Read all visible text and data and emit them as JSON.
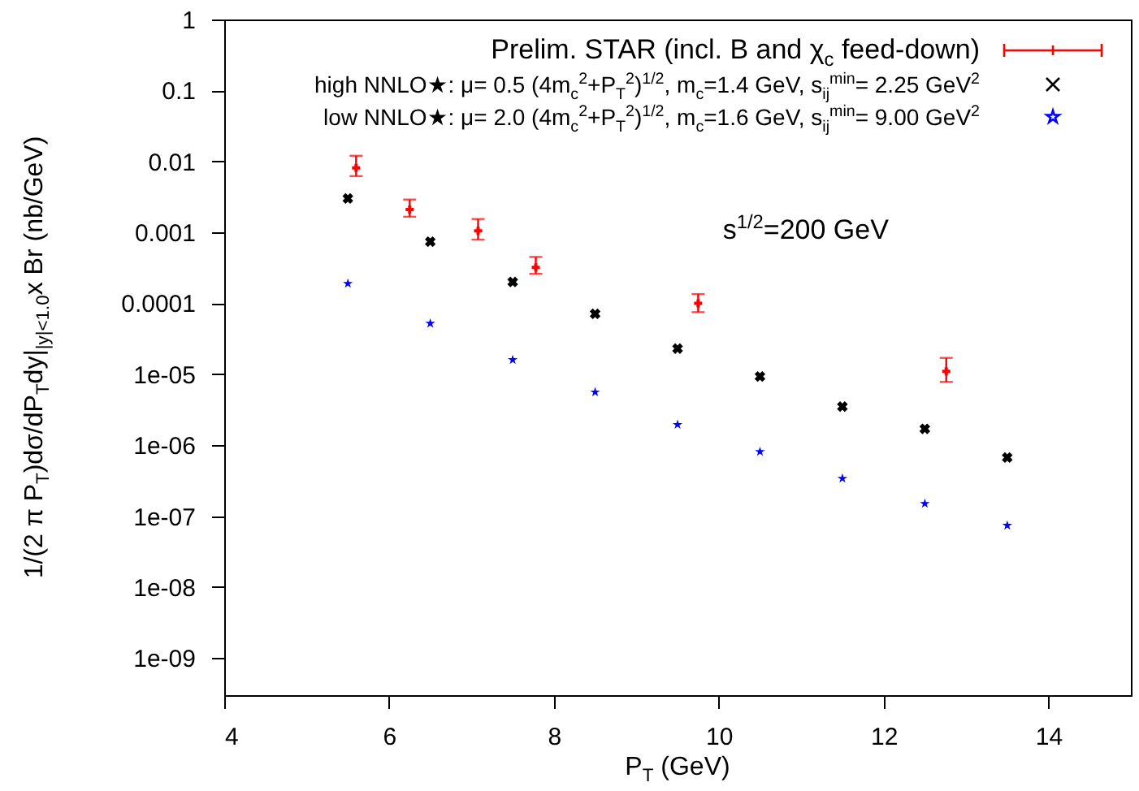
{
  "chart_data": {
    "type": "scatter",
    "xlabel": "P$_{T}$ (GeV)",
    "ylabel": "1/(2 π P$_{T}$)dσ/dP$_{T}$dy|$_{|y|<1.0}$x Br (nb/GeV)",
    "xlim": [
      4,
      15
    ],
    "xticks": [
      4,
      6,
      8,
      10,
      12,
      14
    ],
    "ylim": [
      3e-10,
      1
    ],
    "log": true,
    "yticks": [
      1,
      0.1,
      0.01,
      0.001,
      0.0001,
      {
        "value": 1e-05,
        "label": "1e-05"
      },
      {
        "value": 1e-06,
        "label": "1e-06"
      },
      {
        "value": 1e-07,
        "label": "1e-07"
      },
      {
        "value": 1e-08,
        "label": "1e-08"
      },
      {
        "value": 1e-09,
        "label": "1e-09"
      }
    ],
    "grid": false,
    "legend": "top right",
    "annotations": [
      "s$^{1/2}$=200 GeV"
    ],
    "series": [
      {
        "name": "Prelim. STAR (incl. B and χ$_{c}$ feed-down)",
        "color": "#ff0000",
        "marker": "cross",
        "x": [
          5.6,
          6.25,
          7.08,
          7.78,
          9.75,
          12.76
        ],
        "values": [
          0.0081,
          0.0021,
          0.00105,
          0.00032,
          0.0001,
          1.1e-05
        ],
        "errors": [
          [
            0.0062,
            0.012
          ],
          [
            0.00166,
            0.0029
          ],
          [
            0.00079,
            0.00154
          ],
          [
            0.00026,
            0.00045
          ],
          [
            7.5e-05,
            0.000135
          ],
          [
            7.8e-06,
            1.7e-05
          ]
        ]
      },
      {
        "name": "high NNLO★: μ= 0.5 (4m$_{c}$$^{2}$+P$_{T}$$^{2}$)$^{1/2}$,    m$_{c}$=1.4 GeV, s$_{ij}$$^{min}$=  2.25 GeV$^{2}$",
        "color": "#000000",
        "marker": "cross",
        "x": [
          5.5,
          6.5,
          7.5,
          8.5,
          9.5,
          10.5,
          11.5,
          12.5,
          13.5
        ],
        "values": [
          0.003,
          0.00074,
          0.0002,
          7.1e-05,
          2.3e-05,
          9.3e-06,
          3.5e-06,
          1.7e-06,
          6.7e-07
        ]
      },
      {
        "name": "low  NNLO★: μ= 2.0 (4m$_{c}$$^{2}$+P$_{T}$$^{2}$)$^{1/2}$,    m$_{c}$=1.6 GeV, s$_{ij}$$^{min}$=  9.00 GeV$^{2}$",
        "color": "#0000ff",
        "marker": "star",
        "x": [
          5.5,
          6.5,
          7.5,
          8.5,
          9.5,
          10.5,
          11.5,
          12.5,
          13.5
        ],
        "values": [
          0.00019,
          5.2e-05,
          1.6e-05,
          5.6e-06,
          1.95e-06,
          8.1e-07,
          3.4e-07,
          1.5e-07,
          7.4e-08
        ]
      }
    ]
  }
}
